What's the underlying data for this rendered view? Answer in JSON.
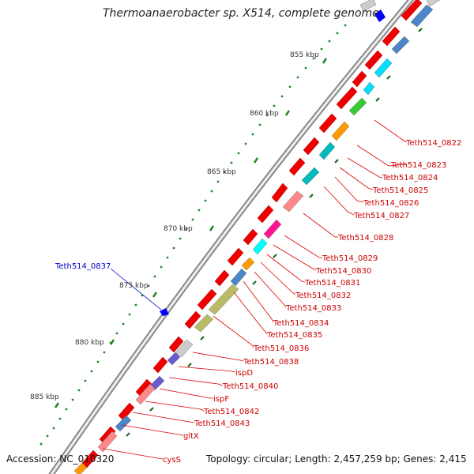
{
  "map": {
    "title": "Thermoanaerobacter sp. X514, complete genome",
    "accession_label": "Accession: NC_010320",
    "summary_label": "Topology: circular; Length: 2,457,259 bp; Genes: 2,415",
    "kbp_ticks": [
      "855 kbp",
      "860 kbp",
      "865 kbp",
      "870 kbp",
      "875 kbp",
      "880 kbp",
      "885 kbp"
    ],
    "highlighted_gene": {
      "label": "Teth514_0837",
      "color": "#0000cc"
    },
    "gene_labels": [
      "Teth514_0822",
      "Teth514_0823",
      "Teth514_0824",
      "Teth514_0825",
      "Teth514_0826",
      "Teth514_0827",
      "Teth514_0828",
      "Teth514_0829",
      "Teth514_0830",
      "Teth514_0831",
      "Teth514_0832",
      "Teth514_0833",
      "Teth514_0834",
      "Teth514_0835",
      "Teth514_0836",
      "Teth514_0838",
      "ispD",
      "Teth514_0840",
      "ispF",
      "Teth514_0842",
      "Teth514_0843",
      "gltX",
      "cysS"
    ],
    "colors": {
      "forward_gene": "#ee0000",
      "label_text": "#cc0000",
      "leader_line": "#dd0000",
      "backbone": "#999999",
      "tick_dots": "#228822"
    },
    "feature_colors": [
      "#4a86c8",
      "#00ddff",
      "#33cc33",
      "#ff9900",
      "#00bbbb",
      "#ff8888",
      "#ff1493",
      "#bbbb66",
      "#6a5acd",
      "#cccccc"
    ]
  }
}
